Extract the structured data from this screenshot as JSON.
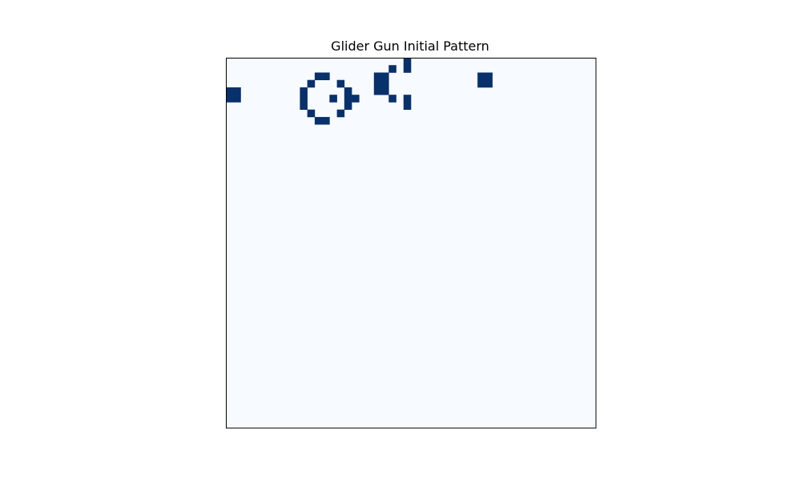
{
  "chart_data": {
    "type": "heatmap",
    "title": "Glider Gun Initial Pattern",
    "xlabel": "",
    "ylabel": "",
    "grid": false,
    "axes_ticks": false,
    "colormap": "Blues",
    "colors": {
      "live": "#08306b",
      "dead": "#f7fbff",
      "frame": "#000000"
    },
    "shape": [
      50,
      50
    ],
    "live_cells": [
      [
        0,
        24
      ],
      [
        1,
        22
      ],
      [
        1,
        24
      ],
      [
        2,
        12
      ],
      [
        2,
        13
      ],
      [
        2,
        20
      ],
      [
        2,
        21
      ],
      [
        2,
        34
      ],
      [
        2,
        35
      ],
      [
        3,
        11
      ],
      [
        3,
        15
      ],
      [
        3,
        20
      ],
      [
        3,
        21
      ],
      [
        3,
        34
      ],
      [
        3,
        35
      ],
      [
        4,
        0
      ],
      [
        4,
        1
      ],
      [
        4,
        10
      ],
      [
        4,
        16
      ],
      [
        4,
        20
      ],
      [
        4,
        21
      ],
      [
        5,
        0
      ],
      [
        5,
        1
      ],
      [
        5,
        10
      ],
      [
        5,
        14
      ],
      [
        5,
        16
      ],
      [
        5,
        17
      ],
      [
        5,
        22
      ],
      [
        5,
        24
      ],
      [
        6,
        10
      ],
      [
        6,
        16
      ],
      [
        6,
        24
      ],
      [
        7,
        11
      ],
      [
        7,
        15
      ],
      [
        8,
        12
      ],
      [
        8,
        13
      ]
    ]
  }
}
